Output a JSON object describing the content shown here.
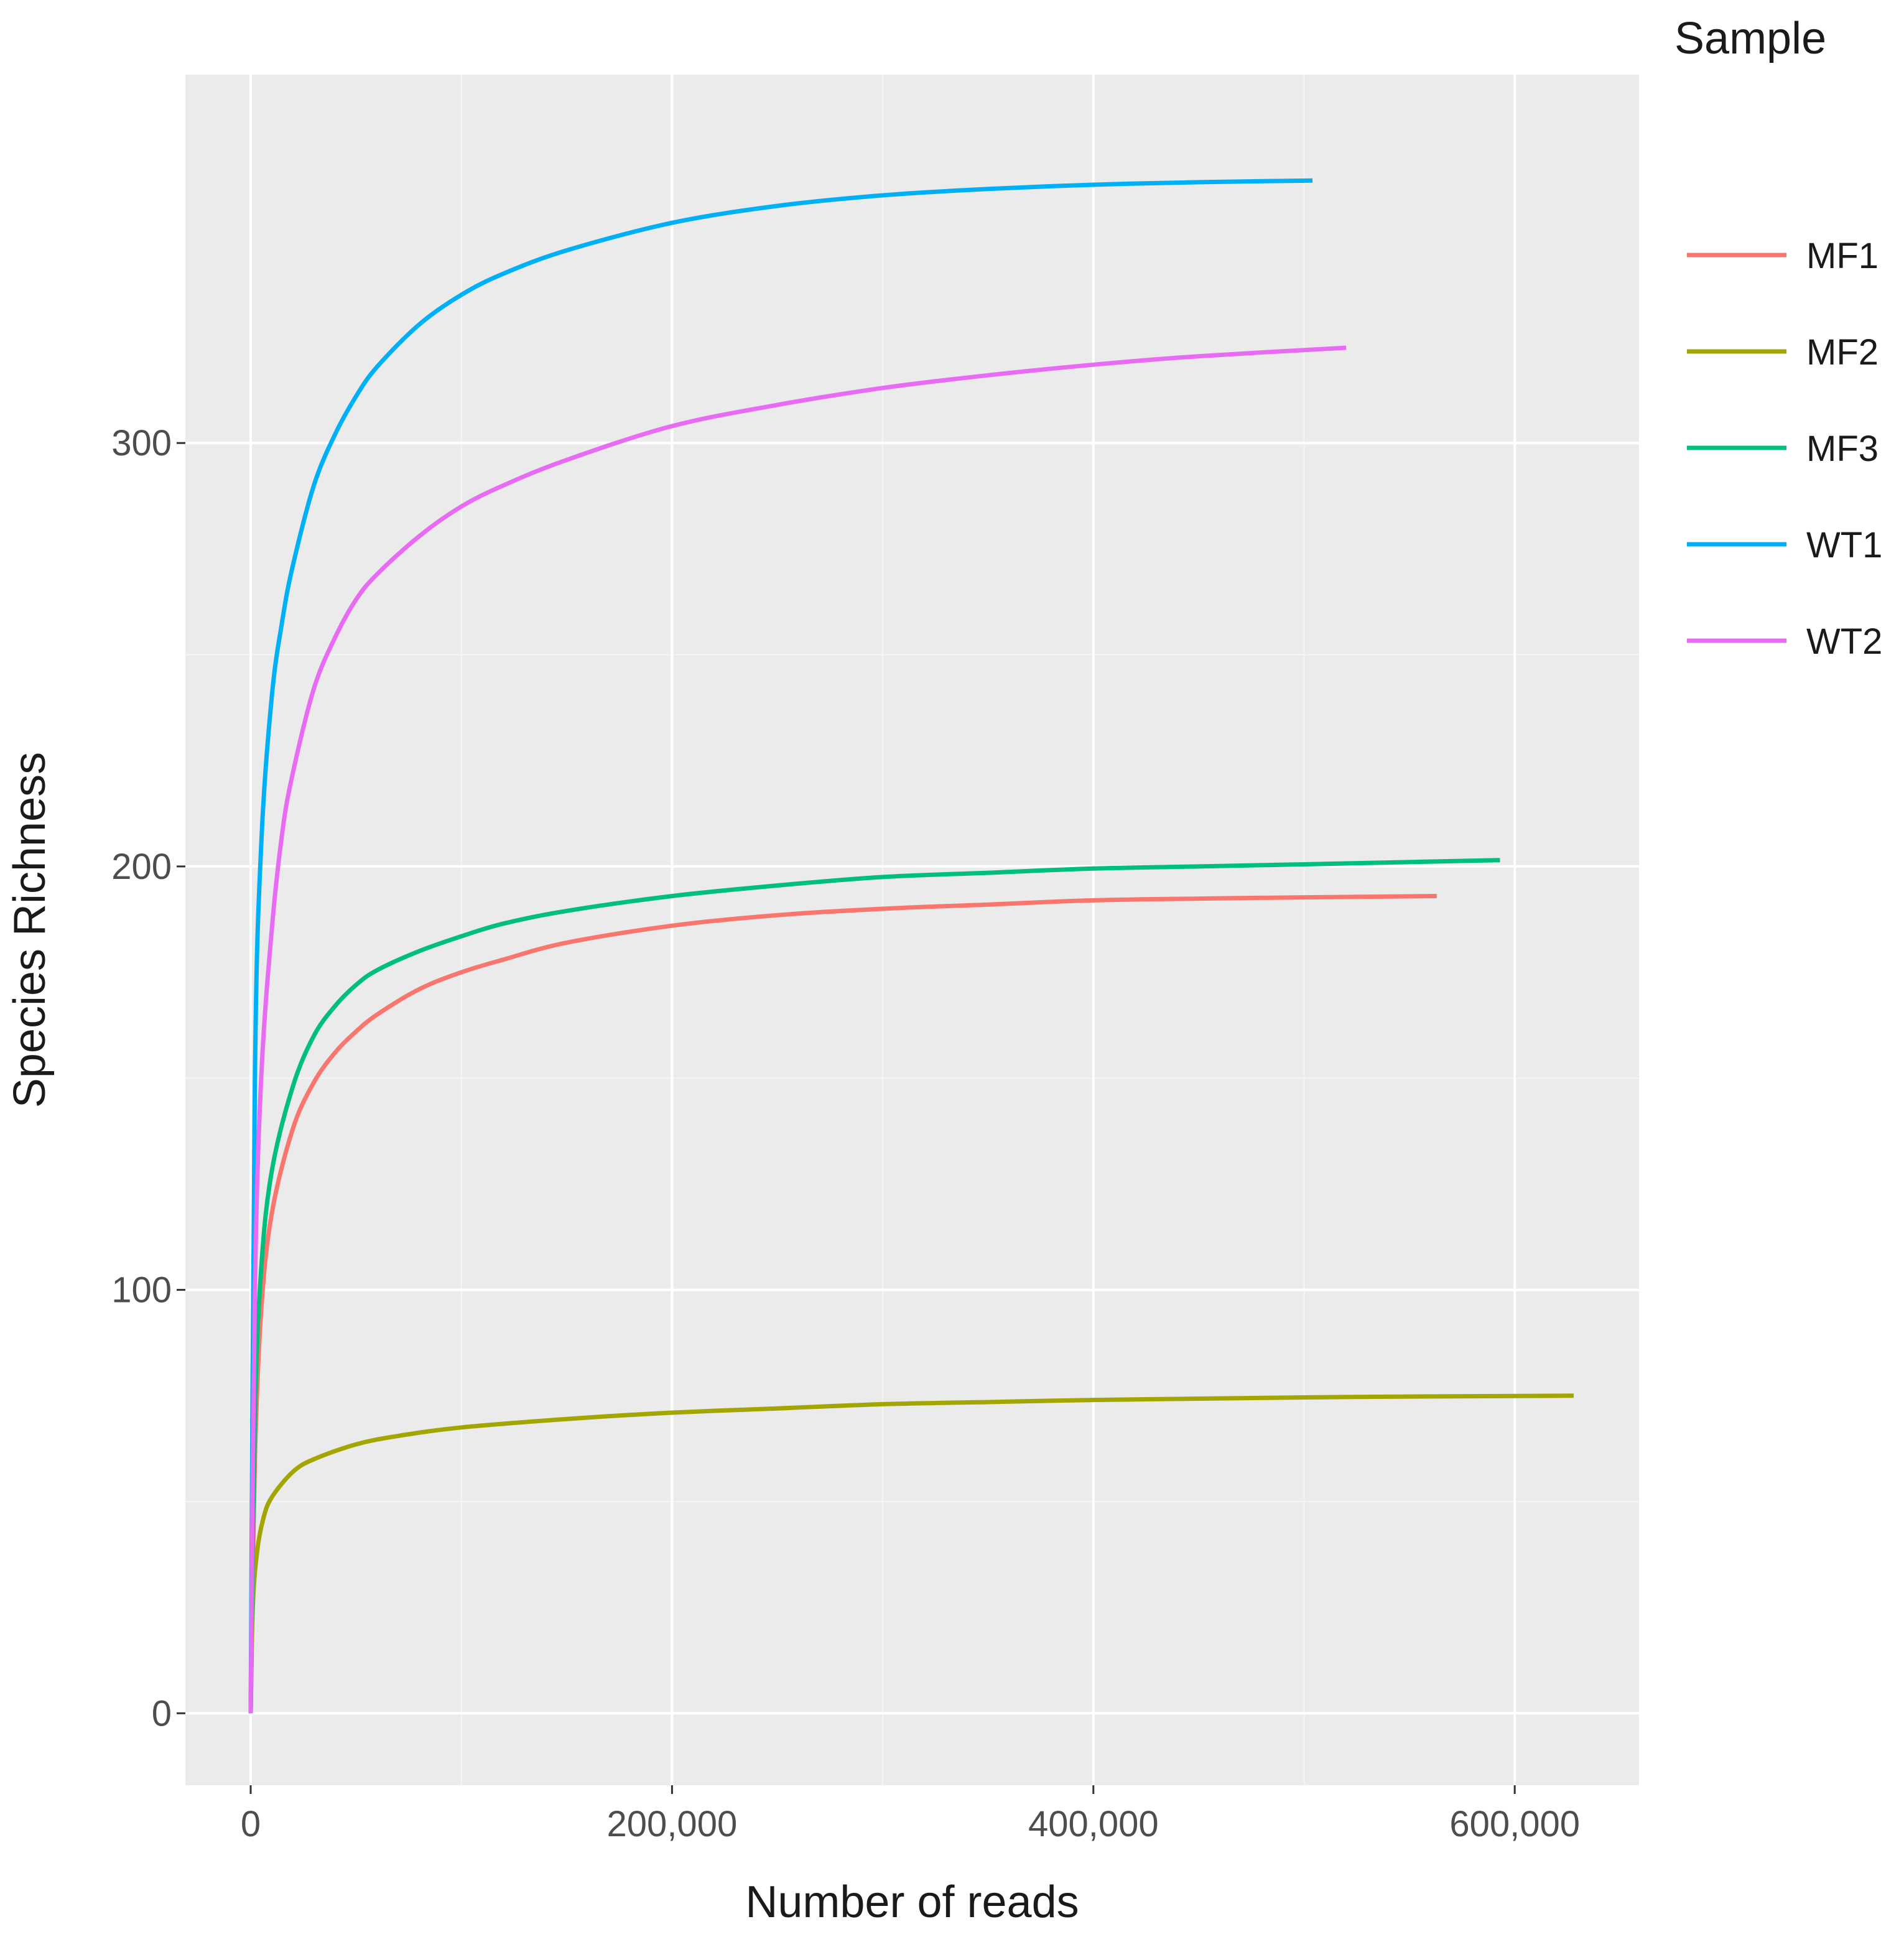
{
  "chart_data": {
    "type": "line",
    "title": "",
    "xlabel": "Number of reads",
    "ylabel": "Species Richness",
    "xlim": [
      -31000,
      659000
    ],
    "ylim": [
      -17,
      387
    ],
    "x_ticks": [
      0,
      200000,
      400000,
      600000
    ],
    "x_tick_labels": [
      "0",
      "200,000",
      "400,000",
      "600,000"
    ],
    "y_ticks": [
      0,
      100,
      200,
      300
    ],
    "y_tick_labels": [
      "0",
      "100",
      "200",
      "300"
    ],
    "grid": true,
    "legend": {
      "title": "Sample",
      "position": "right"
    },
    "series": [
      {
        "name": "MF1",
        "color": "#F8766D",
        "points": [
          [
            0,
            0
          ],
          [
            2000,
            60
          ],
          [
            5000,
            95
          ],
          [
            10000,
            118
          ],
          [
            20000,
            138
          ],
          [
            30000,
            149
          ],
          [
            40000,
            156
          ],
          [
            50000,
            161
          ],
          [
            60000,
            165
          ],
          [
            80000,
            171
          ],
          [
            100000,
            175
          ],
          [
            120000,
            178
          ],
          [
            150000,
            182
          ],
          [
            200000,
            186
          ],
          [
            250000,
            188.5
          ],
          [
            300000,
            190
          ],
          [
            350000,
            191
          ],
          [
            400000,
            192
          ],
          [
            450000,
            192.4
          ],
          [
            500000,
            192.7
          ],
          [
            563000,
            193
          ]
        ]
      },
      {
        "name": "MF2",
        "color": "#A3A500",
        "points": [
          [
            0,
            0
          ],
          [
            1000,
            25
          ],
          [
            3000,
            38
          ],
          [
            6000,
            46
          ],
          [
            10000,
            51
          ],
          [
            20000,
            57
          ],
          [
            30000,
            60
          ],
          [
            50000,
            63.5
          ],
          [
            70000,
            65.5
          ],
          [
            100000,
            67.5
          ],
          [
            150000,
            69.5
          ],
          [
            200000,
            71
          ],
          [
            250000,
            72
          ],
          [
            300000,
            73
          ],
          [
            350000,
            73.5
          ],
          [
            400000,
            74
          ],
          [
            450000,
            74.3
          ],
          [
            500000,
            74.6
          ],
          [
            550000,
            74.8
          ],
          [
            628000,
            75
          ]
        ]
      },
      {
        "name": "MF3",
        "color": "#00BF7D",
        "points": [
          [
            0,
            0
          ],
          [
            2000,
            70
          ],
          [
            5000,
            105
          ],
          [
            10000,
            128
          ],
          [
            20000,
            148
          ],
          [
            30000,
            160
          ],
          [
            40000,
            167
          ],
          [
            50000,
            172
          ],
          [
            60000,
            175.5
          ],
          [
            80000,
            180
          ],
          [
            100000,
            183.5
          ],
          [
            120000,
            186.5
          ],
          [
            150000,
            189.5
          ],
          [
            200000,
            193
          ],
          [
            250000,
            195.5
          ],
          [
            300000,
            197.5
          ],
          [
            350000,
            198.5
          ],
          [
            400000,
            199.5
          ],
          [
            450000,
            200
          ],
          [
            500000,
            200.5
          ],
          [
            593000,
            201.5
          ]
        ]
      },
      {
        "name": "WT1",
        "color": "#00B0F6",
        "points": [
          [
            0,
            0
          ],
          [
            2000,
            150
          ],
          [
            5000,
            205
          ],
          [
            10000,
            240
          ],
          [
            15000,
            258
          ],
          [
            20000,
            271
          ],
          [
            30000,
            290
          ],
          [
            40000,
            302
          ],
          [
            50000,
            311
          ],
          [
            60000,
            318
          ],
          [
            80000,
            328
          ],
          [
            100000,
            335
          ],
          [
            120000,
            340
          ],
          [
            150000,
            345.5
          ],
          [
            200000,
            352
          ],
          [
            250000,
            356
          ],
          [
            300000,
            358.5
          ],
          [
            350000,
            360
          ],
          [
            400000,
            361
          ],
          [
            450000,
            361.6
          ],
          [
            504000,
            362
          ]
        ]
      },
      {
        "name": "WT2",
        "color": "#E76BF3",
        "points": [
          [
            0,
            0
          ],
          [
            2000,
            100
          ],
          [
            5000,
            150
          ],
          [
            10000,
            185
          ],
          [
            15000,
            208
          ],
          [
            20000,
            222
          ],
          [
            30000,
            242
          ],
          [
            40000,
            254
          ],
          [
            50000,
            263
          ],
          [
            60000,
            269
          ],
          [
            80000,
            278
          ],
          [
            100000,
            285
          ],
          [
            120000,
            290
          ],
          [
            150000,
            296
          ],
          [
            200000,
            304
          ],
          [
            250000,
            309
          ],
          [
            300000,
            313
          ],
          [
            350000,
            316
          ],
          [
            400000,
            318.5
          ],
          [
            450000,
            320.5
          ],
          [
            520000,
            322.5
          ]
        ]
      }
    ]
  }
}
